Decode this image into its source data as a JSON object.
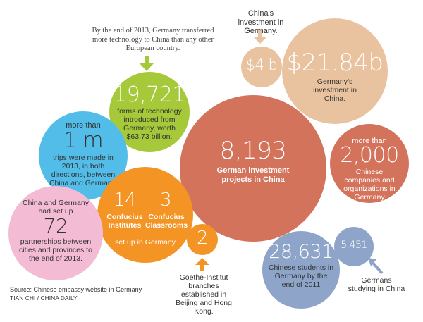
{
  "colors": {
    "salmon": "#D4735C",
    "peach": "#E9C39F",
    "green": "#A6C93A",
    "blue": "#52BDE8",
    "orange": "#F39424",
    "pink": "#F4BCD4",
    "slate": "#8EA5C9"
  },
  "top_note": "By the end of 2013, Germany transferred more technology to China than any other European country.",
  "china_investment": {
    "caption": "China's investment in Germany.",
    "value": "$4 b"
  },
  "germany_investment": {
    "value": "$21.84b",
    "caption": "Germany's investment in China."
  },
  "technology": {
    "value": "19,721",
    "caption": "forms of technology introduced from Germany, worth $63.73 billion."
  },
  "projects": {
    "value": "8,193",
    "caption": "German investment projects in China"
  },
  "companies": {
    "prefix": "more than",
    "value": "2,000",
    "caption": "Chinese companies and organizations in Germany"
  },
  "trips": {
    "prefix": "more than",
    "value": "1 m",
    "caption": "trips were made in 2013, in both directions, between China and Germany."
  },
  "confucius": {
    "institutes_value": "14",
    "institutes_label": "Confucius Institutes",
    "classrooms_value": "3",
    "classrooms_label": "Confucius Classrooms",
    "caption": "set up in Germany"
  },
  "partnerships": {
    "prefix": "China and Germany had set up",
    "value": "72",
    "caption": "partnerships between cities and provinces to the end of 2013."
  },
  "goethe": {
    "value": "2",
    "caption": "Goethe-Institut branches established in Beijing and Hong Kong."
  },
  "chinese_students": {
    "value": "28,631",
    "caption": "Chinese students in Germany by the end of 2011"
  },
  "german_students": {
    "value": "5,451",
    "caption": "Germans studying in China"
  },
  "source": "Source: Chinese embassy website in Germany",
  "credit": "TIAN CHI / CHINA DAILY"
}
